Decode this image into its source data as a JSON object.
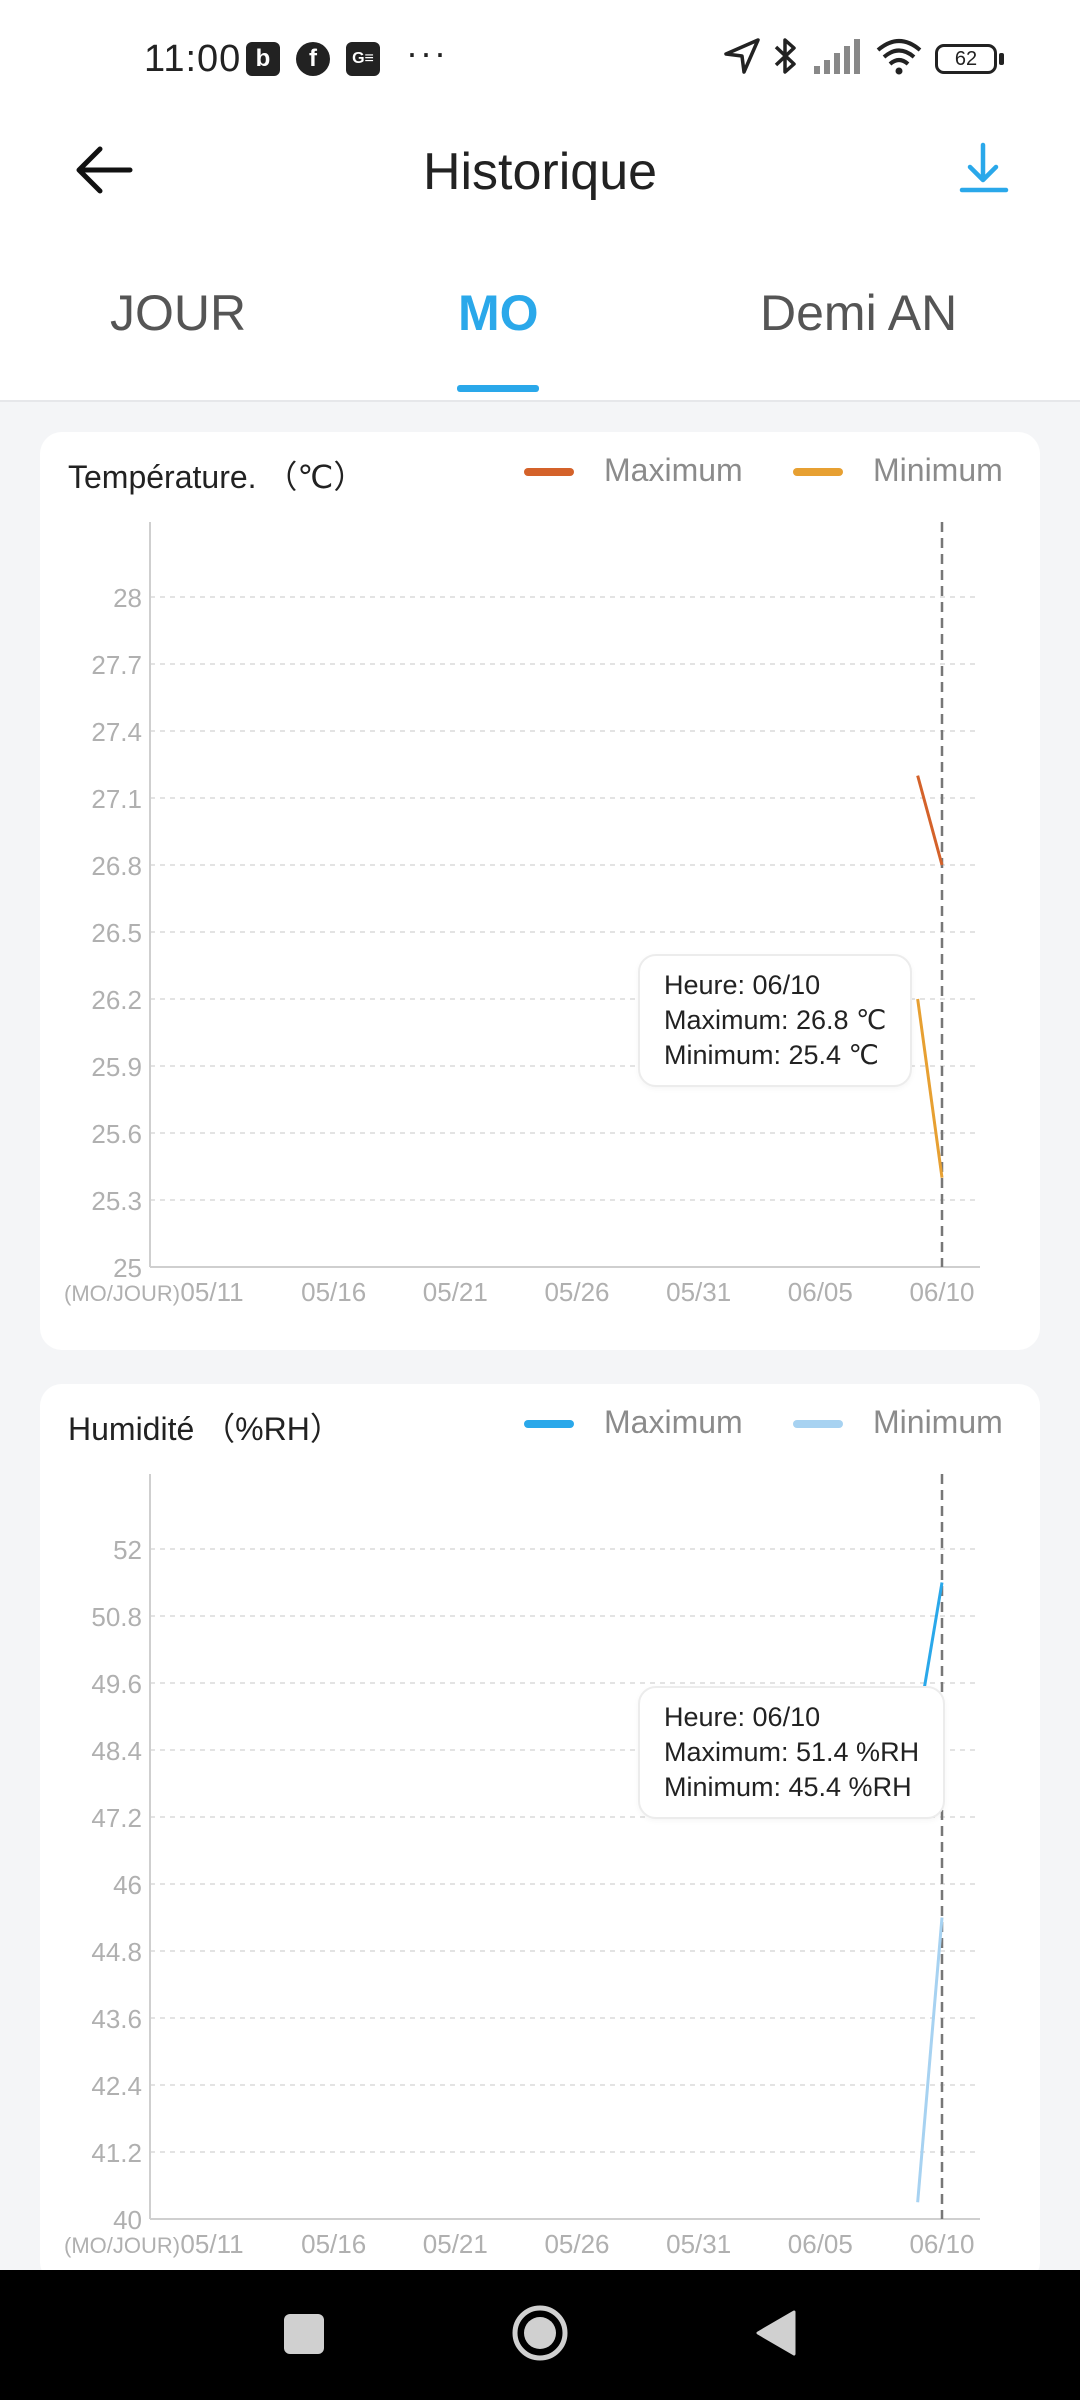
{
  "status_bar": {
    "time": "11:00",
    "battery": "62",
    "app_icons": [
      "b-app-icon",
      "facebook-icon",
      "news-icon"
    ],
    "system_icons": [
      "location-icon",
      "bluetooth-icon",
      "signal-icon",
      "wifi-icon",
      "battery-icon"
    ]
  },
  "header": {
    "title": "Historique",
    "back_icon": "arrow-left-icon",
    "download_icon": "download-icon",
    "accent": "#2aa8ea"
  },
  "tabs": [
    {
      "label": "JOUR",
      "active": false
    },
    {
      "label": "MO",
      "active": true
    },
    {
      "label": "Demi AN",
      "active": false
    }
  ],
  "charts": {
    "temperature": {
      "title": "Température. （℃）",
      "legend": {
        "max": "Maximum",
        "min": "Minimum"
      },
      "colors": {
        "max": "#d4622a",
        "min": "#e7a032"
      },
      "x_unit": "(MO/JOUR)",
      "tooltip": {
        "time": "Heure: 06/10",
        "max": "Maximum: 26.8 ℃",
        "min": "Minimum: 25.4 ℃"
      }
    },
    "humidity": {
      "title": "Humidité （%RH）",
      "legend": {
        "max": "Maximum",
        "min": "Minimum"
      },
      "colors": {
        "max": "#2aa8ea",
        "min": "#a7d2f1"
      },
      "x_unit": "(MO/JOUR)",
      "tooltip": {
        "time": "Heure: 06/10",
        "max": "Maximum: 51.4 %RH",
        "min": "Minimum: 45.4 %RH"
      }
    }
  },
  "chart_data": [
    {
      "type": "line",
      "title": "Température. （℃）",
      "x_ticks": [
        "05/11",
        "05/16",
        "05/21",
        "05/26",
        "05/31",
        "06/05",
        "06/10"
      ],
      "y_ticks": [
        25,
        25.3,
        25.6,
        25.9,
        26.2,
        26.5,
        26.8,
        27.1,
        27.4,
        27.7,
        28
      ],
      "ylim": [
        25,
        28
      ],
      "x": [
        "06/09",
        "06/10"
      ],
      "series": [
        {
          "name": "Maximum",
          "values": [
            27.2,
            26.8
          ]
        },
        {
          "name": "Minimum",
          "values": [
            26.2,
            25.4
          ]
        }
      ],
      "grid": true,
      "legend": "top-right"
    },
    {
      "type": "line",
      "title": "Humidité （%RH）",
      "x_ticks": [
        "05/11",
        "05/16",
        "05/21",
        "05/26",
        "05/31",
        "06/05",
        "06/10"
      ],
      "y_ticks": [
        40,
        41.2,
        42.4,
        43.6,
        44.8,
        46,
        47.2,
        48.4,
        49.6,
        50.8,
        52
      ],
      "ylim": [
        40,
        52
      ],
      "x": [
        "06/09",
        "06/10"
      ],
      "series": [
        {
          "name": "Maximum",
          "values": [
            48.8,
            51.4
          ]
        },
        {
          "name": "Minimum",
          "values": [
            40.3,
            45.4
          ]
        }
      ],
      "grid": true,
      "legend": "top-right"
    }
  ]
}
